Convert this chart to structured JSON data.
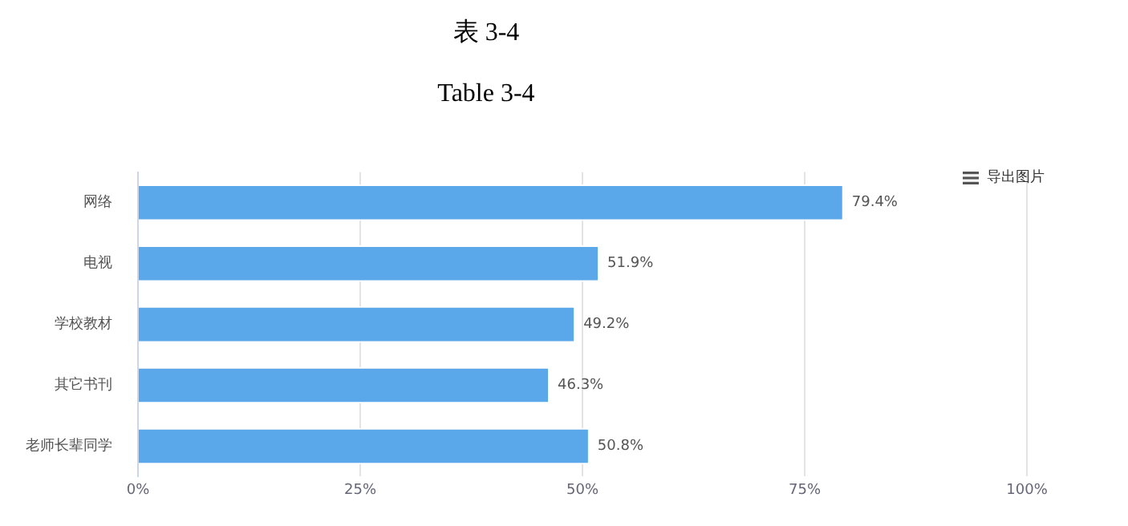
{
  "chart_data": {
    "type": "bar",
    "orientation": "horizontal",
    "title": "表 3-4",
    "subtitle": "Table 3-4",
    "categories": [
      "网络",
      "电视",
      "学校教材",
      "其它书刊",
      "老师长辈同学"
    ],
    "values": [
      79.4,
      51.9,
      49.2,
      46.3,
      50.8
    ],
    "value_labels": [
      "79.4%",
      "51.9%",
      "49.2%",
      "46.3%",
      "50.8%"
    ],
    "color": "#5aa8ea",
    "xlim": [
      0,
      100
    ],
    "xticks": [
      {
        "value": 0,
        "label": "0%"
      },
      {
        "value": 25,
        "label": "25%"
      },
      {
        "value": 50,
        "label": "50%"
      },
      {
        "value": 75,
        "label": "75%"
      },
      {
        "value": 100,
        "label": "100%"
      }
    ],
    "grid": "x",
    "annotations": [
      "导出图片"
    ]
  }
}
